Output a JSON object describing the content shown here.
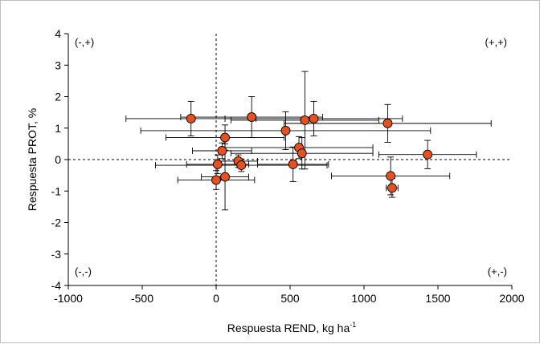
{
  "chart_data": {
    "type": "scatter",
    "xlabel": "Respuesta REND, kg ha",
    "xlabel_sup": "-1",
    "ylabel": "Respuesta PROT, %",
    "xlim": [
      -1000,
      2000
    ],
    "ylim": [
      -4,
      4
    ],
    "x_ticks": [
      "-1000",
      "-500",
      "0",
      "500",
      "1000",
      "1500",
      "2000"
    ],
    "y_ticks": [
      "-4",
      "-3",
      "-2",
      "-1",
      "0",
      "1",
      "2",
      "3",
      "4"
    ],
    "grid": false,
    "reference_lines": {
      "x": 0,
      "y": 0,
      "style": "dashed"
    },
    "quadrant_labels": {
      "top_left": "(-,+)",
      "top_right": "(+,+)",
      "bottom_left": "(-,-)",
      "bottom_right": "(+,-)"
    },
    "marker_color": "#e8501e",
    "points": [
      {
        "x": -170,
        "y": 1.3,
        "xerr": 440,
        "yerr": 0.55
      },
      {
        "x": 240,
        "y": 1.35,
        "xerr": 480,
        "yerr": 0.65
      },
      {
        "x": 600,
        "y": 1.25,
        "xerr": 500,
        "yerr": 1.55
      },
      {
        "x": 660,
        "y": 1.3,
        "xerr": 600,
        "yerr": 0.55
      },
      {
        "x": 1160,
        "y": 1.15,
        "xerr": 700,
        "yerr": 0.6
      },
      {
        "x": 470,
        "y": 0.92,
        "xerr": 980,
        "yerr": 0.6
      },
      {
        "x": 60,
        "y": 0.7,
        "xerr": 400,
        "yerr": 0.4
      },
      {
        "x": 560,
        "y": 0.38,
        "xerr": 500,
        "yerr": 0.35
      },
      {
        "x": 40,
        "y": 0.28,
        "xerr": 200,
        "yerr": 0.25
      },
      {
        "x": 580,
        "y": 0.2,
        "xerr": 480,
        "yerr": 0.5
      },
      {
        "x": 1430,
        "y": 0.16,
        "xerr": 330,
        "yerr": 0.45
      },
      {
        "x": 10,
        "y": -0.15,
        "xerr": 210,
        "yerr": 0.3
      },
      {
        "x": 150,
        "y": -0.05,
        "xerr": 130,
        "yerr": 0.2
      },
      {
        "x": 170,
        "y": -0.18,
        "xerr": 580,
        "yerr": 0.2
      },
      {
        "x": 520,
        "y": -0.15,
        "xerr": 240,
        "yerr": 0.55
      },
      {
        "x": 60,
        "y": -0.55,
        "xerr": 160,
        "yerr": 1.05
      },
      {
        "x": 0,
        "y": -0.65,
        "xerr": 260,
        "yerr": 0.3
      },
      {
        "x": 1180,
        "y": -0.52,
        "xerr": 400,
        "yerr": 0.6
      },
      {
        "x": 1190,
        "y": -0.9,
        "xerr": 40,
        "yerr": 0.3
      }
    ]
  }
}
